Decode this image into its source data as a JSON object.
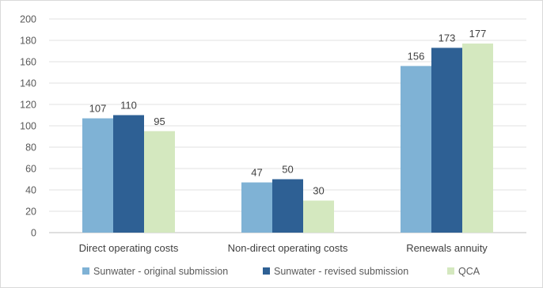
{
  "chart_data": {
    "type": "bar",
    "title": "",
    "xlabel": "",
    "ylabel": "",
    "ylim": [
      0,
      200
    ],
    "yticks": [
      0,
      20,
      40,
      60,
      80,
      100,
      120,
      140,
      160,
      180,
      200
    ],
    "grid": true,
    "legend_position": "bottom",
    "categories": [
      "Direct operating costs",
      "Non-direct operating costs",
      "Renewals annuity"
    ],
    "series": [
      {
        "name": "Sunwater - original submission",
        "color": "#7fb2d5",
        "values": [
          107,
          47,
          156
        ]
      },
      {
        "name": "Sunwater - revised submission",
        "color": "#2e6094",
        "values": [
          110,
          50,
          173
        ]
      },
      {
        "name": "QCA",
        "color": "#d4e8bf",
        "values": [
          95,
          30,
          177
        ]
      }
    ]
  }
}
